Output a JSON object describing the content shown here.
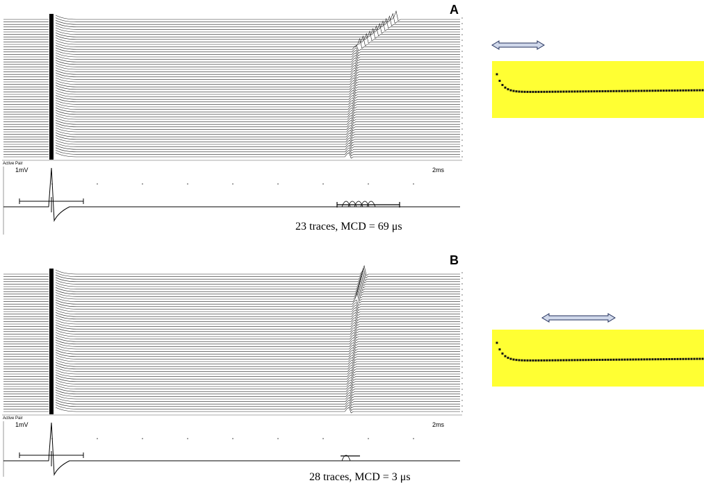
{
  "panels": [
    {
      "label": "A",
      "header": "Active Pair",
      "amplitude_scale": "1mV",
      "time_scale": "2ms",
      "caption": "23 traces, MCD = 69 μs"
    },
    {
      "label": "B",
      "header": "Active Pair",
      "amplitude_scale": "1mV",
      "time_scale": "2ms",
      "caption": "28 traces, MCD = 3 μs"
    }
  ]
}
